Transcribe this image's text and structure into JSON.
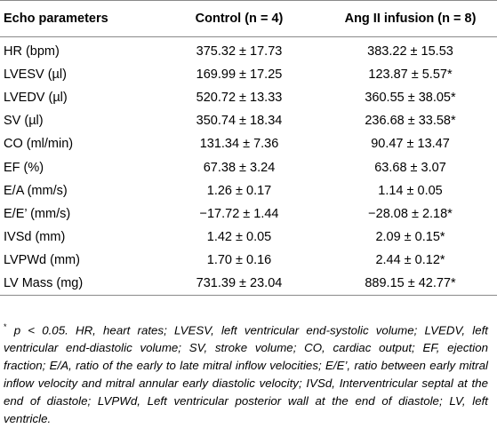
{
  "table": {
    "headers": [
      "Echo parameters",
      "Control (n = 4)",
      "Ang II infusion (n = 8)"
    ],
    "rows": [
      [
        "HR (bpm)",
        "375.32 ± 17.73",
        "383.22 ± 15.53"
      ],
      [
        "LVESV (µl)",
        "169.99 ± 17.25",
        "123.87 ± 5.57*"
      ],
      [
        "LVEDV (µl)",
        "520.72 ± 13.33",
        "360.55 ± 38.05*"
      ],
      [
        "SV (µl)",
        "350.74 ± 18.34",
        "236.68 ± 33.58*"
      ],
      [
        "CO (ml/min)",
        "131.34 ± 7.36",
        "90.47 ± 13.47"
      ],
      [
        "EF (%)",
        "67.38 ± 3.24",
        "63.68 ± 3.07"
      ],
      [
        "E/A (mm/s)",
        "1.26 ± 0.17",
        "1.14 ± 0.05"
      ],
      [
        "E/E’ (mm/s)",
        "−17.72 ± 1.44",
        "−28.08 ± 2.18*"
      ],
      [
        "IVSd (mm)",
        "1.42 ± 0.05",
        "2.09 ± 0.15*"
      ],
      [
        "LVPWd (mm)",
        "1.70 ± 0.16",
        "2.44 ± 0.12*"
      ],
      [
        "LV Mass (mg)",
        "731.39 ± 23.04",
        "889.15 ± 42.77*"
      ]
    ]
  },
  "footnote": {
    "marker": "*",
    "text": "p < 0.05. HR, heart rates; LVESV, left ventricular end-systolic volume; LVEDV, left ventricular end-diastolic volume; SV, stroke volume; CO, cardiac output; EF, ejection fraction; E/A, ratio of the early to late mitral inflow velocities; E/E’, ratio between early mitral inflow velocity and mitral annular early diastolic velocity; IVSd, Interventricular septal at the end of diastole; LVPWd, Left ventricular posterior wall at the end of diastole; LV, left ventricle."
  }
}
